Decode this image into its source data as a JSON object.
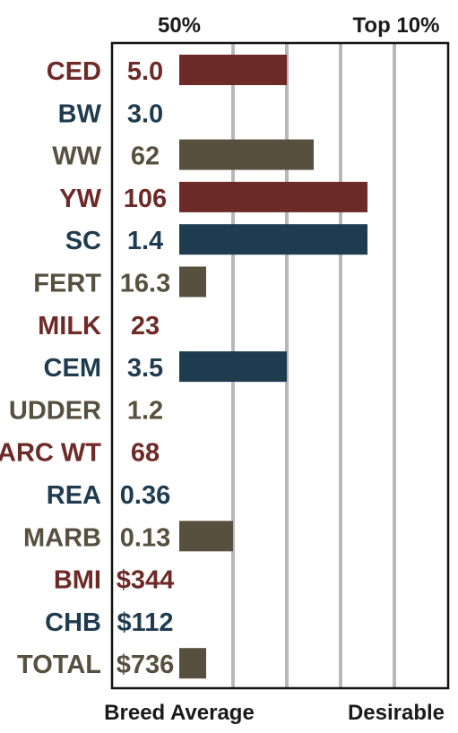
{
  "chart_data": {
    "type": "bar",
    "top_labels": [
      "50%",
      "Top 10%"
    ],
    "bottom_labels": [
      "Breed Average",
      "Desirable"
    ],
    "palette": {
      "red": "#6e2a27",
      "blue": "#1f3b4f",
      "brown": "#57503f",
      "grid": "#b9b6bd",
      "frame": "#111111"
    },
    "x_range": [
      0,
      5
    ],
    "gridlines": [
      1,
      2,
      3,
      4
    ],
    "rows": [
      {
        "trait": "CED",
        "value": "5.0",
        "bar": 2.0,
        "color": "red"
      },
      {
        "trait": "BW",
        "value": "3.0",
        "bar": 0,
        "color": "blue"
      },
      {
        "trait": "WW",
        "value": "62",
        "bar": 2.5,
        "color": "brown"
      },
      {
        "trait": "YW",
        "value": "106",
        "bar": 3.5,
        "color": "red"
      },
      {
        "trait": "SC",
        "value": "1.4",
        "bar": 3.5,
        "color": "blue"
      },
      {
        "trait": "FERT",
        "value": "16.3",
        "bar": 0.5,
        "color": "brown"
      },
      {
        "trait": "MILK",
        "value": "23",
        "bar": 0,
        "color": "red"
      },
      {
        "trait": "CEM",
        "value": "3.5",
        "bar": 2.0,
        "color": "blue"
      },
      {
        "trait": "UDDER",
        "value": "1.2",
        "bar": 0,
        "color": "brown"
      },
      {
        "trait": "CARC WT",
        "value": "68",
        "bar": 0,
        "color": "red"
      },
      {
        "trait": "REA",
        "value": "0.36",
        "bar": 0,
        "color": "blue"
      },
      {
        "trait": "MARB",
        "value": "0.13",
        "bar": 1.0,
        "color": "brown"
      },
      {
        "trait": "BMI",
        "value": "$344",
        "bar": 0,
        "color": "red"
      },
      {
        "trait": "CHB",
        "value": "$112",
        "bar": 0,
        "color": "blue"
      },
      {
        "trait": "TOTAL",
        "value": "$736",
        "bar": 0.5,
        "color": "brown"
      }
    ]
  }
}
